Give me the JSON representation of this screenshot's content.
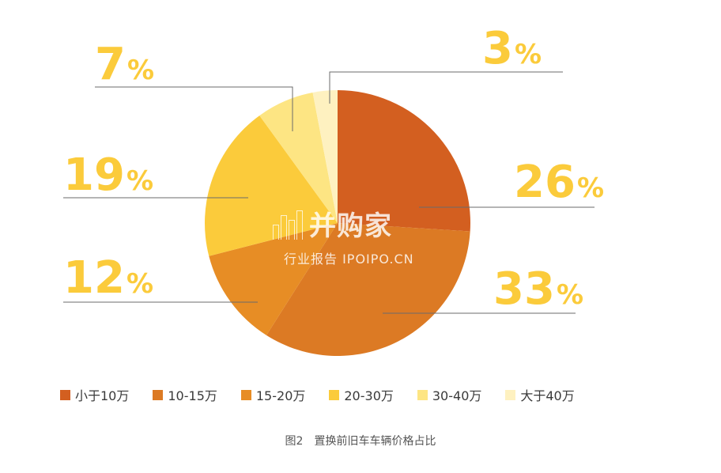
{
  "chart_data": {
    "type": "pie",
    "title": "图2　置换前旧车车辆价格占比",
    "categories": [
      "小于10万",
      "10-15万",
      "15-20万",
      "20-30万",
      "30-40万",
      "大于40万"
    ],
    "values": [
      26,
      33,
      12,
      19,
      7,
      3
    ],
    "labels": [
      "26",
      "33",
      "12",
      "19",
      "7",
      "3"
    ],
    "unit": "%",
    "colors": [
      "#D35F20",
      "#DC7A24",
      "#E78D25",
      "#FBCB3B",
      "#FDE583",
      "#FEF1C0"
    ],
    "legend_position": "bottom"
  },
  "watermark": {
    "brand": "并购家",
    "subtitle": "行业报告 IPOIPO.CN"
  }
}
